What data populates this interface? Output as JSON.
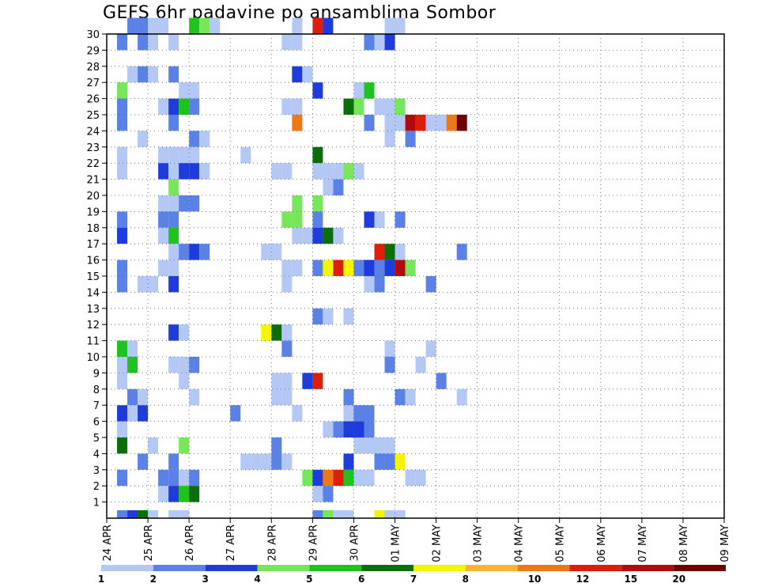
{
  "chart_data": {
    "type": "heatmap",
    "title": "GEFS 6hr padavine po ansamblima Sombor",
    "xlabel": "",
    "ylabel": "",
    "ylim": [
      0,
      30
    ],
    "y_ticks": [
      "1",
      "2",
      "3",
      "4",
      "5",
      "6",
      "7",
      "8",
      "9",
      "10",
      "11",
      "12",
      "13",
      "14",
      "15",
      "16",
      "17",
      "18",
      "19",
      "20",
      "21",
      "22",
      "23",
      "24",
      "25",
      "26",
      "27",
      "28",
      "29",
      "30"
    ],
    "x_ticks": [
      "24 APR",
      "25 APR",
      "26 APR",
      "27 APR",
      "28 APR",
      "29 APR",
      "30 APR",
      "01 MAY",
      "02 MAY",
      "03 MAY",
      "04 MAY",
      "05 MAY",
      "06 MAY",
      "07 MAY",
      "08 MAY",
      "09 MAY"
    ],
    "x_unit": "6h step from 24 APR 00Z",
    "x_steps": 60,
    "grid": true,
    "grid_style": "dotted",
    "colorbar": {
      "labels": [
        "1",
        "2",
        "3",
        "4",
        "5",
        "6",
        "7",
        "8",
        "10",
        "12",
        "15",
        "20"
      ],
      "colors": [
        "#b4c8f5",
        "#5a82e6",
        "#1e3cdc",
        "#78e65a",
        "#1ec31e",
        "#0a6e0a",
        "#f5f500",
        "#fab432",
        "#f07814",
        "#dc1e0a",
        "#b40a0a",
        "#6e0000"
      ]
    },
    "cells": [
      [
        2,
        1,
        30
      ],
      [
        3,
        1,
        30
      ],
      [
        4,
        0,
        30
      ],
      [
        5,
        0,
        30
      ],
      [
        8,
        4,
        30
      ],
      [
        9,
        3,
        30
      ],
      [
        10,
        0,
        30
      ],
      [
        18,
        0,
        30
      ],
      [
        20,
        9,
        30
      ],
      [
        21,
        2,
        30
      ],
      [
        27,
        0,
        30
      ],
      [
        28,
        0,
        30
      ],
      [
        1,
        1,
        29
      ],
      [
        3,
        1,
        29
      ],
      [
        4,
        0,
        29
      ],
      [
        6,
        0,
        29
      ],
      [
        17,
        0,
        29
      ],
      [
        18,
        0,
        29
      ],
      [
        25,
        1,
        29
      ],
      [
        26,
        0,
        29
      ],
      [
        27,
        2,
        29
      ],
      [
        2,
        0,
        27
      ],
      [
        3,
        1,
        27
      ],
      [
        4,
        0,
        27
      ],
      [
        6,
        1,
        27
      ],
      [
        18,
        2,
        27
      ],
      [
        19,
        0,
        27
      ],
      [
        1,
        3,
        26
      ],
      [
        7,
        0,
        26
      ],
      [
        8,
        0,
        26
      ],
      [
        20,
        2,
        26
      ],
      [
        24,
        0,
        26
      ],
      [
        25,
        4,
        26
      ],
      [
        1,
        1,
        25
      ],
      [
        5,
        0,
        25
      ],
      [
        6,
        2,
        25
      ],
      [
        7,
        4,
        25
      ],
      [
        8,
        1,
        25
      ],
      [
        17,
        0,
        25
      ],
      [
        18,
        0,
        25
      ],
      [
        23,
        5,
        25
      ],
      [
        24,
        3,
        25
      ],
      [
        26,
        0,
        25
      ],
      [
        27,
        0,
        25
      ],
      [
        28,
        3,
        25
      ],
      [
        1,
        1,
        24
      ],
      [
        6,
        1,
        24
      ],
      [
        18,
        8,
        24
      ],
      [
        25,
        1,
        24
      ],
      [
        27,
        0,
        24
      ],
      [
        28,
        0,
        24
      ],
      [
        29,
        10,
        24
      ],
      [
        30,
        9,
        24
      ],
      [
        31,
        0,
        24
      ],
      [
        32,
        0,
        24
      ],
      [
        33,
        8,
        24
      ],
      [
        34,
        11,
        24
      ],
      [
        3,
        0,
        23
      ],
      [
        8,
        1,
        23
      ],
      [
        9,
        0,
        23
      ],
      [
        27,
        0,
        23
      ],
      [
        29,
        1,
        23
      ],
      [
        1,
        0,
        22
      ],
      [
        5,
        0,
        22
      ],
      [
        6,
        0,
        22
      ],
      [
        7,
        0,
        22
      ],
      [
        8,
        0,
        22
      ],
      [
        13,
        0,
        22
      ],
      [
        20,
        5,
        22
      ],
      [
        1,
        0,
        21
      ],
      [
        5,
        2,
        21
      ],
      [
        6,
        0,
        21
      ],
      [
        7,
        2,
        21
      ],
      [
        8,
        2,
        21
      ],
      [
        9,
        0,
        21
      ],
      [
        16,
        0,
        21
      ],
      [
        17,
        0,
        21
      ],
      [
        20,
        0,
        21
      ],
      [
        21,
        0,
        21
      ],
      [
        22,
        0,
        21
      ],
      [
        23,
        3,
        21
      ],
      [
        24,
        0,
        21
      ],
      [
        6,
        3,
        20
      ],
      [
        21,
        0,
        20
      ],
      [
        22,
        1,
        20
      ],
      [
        5,
        0,
        19
      ],
      [
        6,
        0,
        19
      ],
      [
        7,
        1,
        19
      ],
      [
        8,
        1,
        19
      ],
      [
        18,
        3,
        19
      ],
      [
        20,
        3,
        19
      ],
      [
        1,
        1,
        18
      ],
      [
        5,
        1,
        18
      ],
      [
        6,
        1,
        18
      ],
      [
        17,
        3,
        18
      ],
      [
        18,
        3,
        18
      ],
      [
        20,
        1,
        18
      ],
      [
        25,
        2,
        18
      ],
      [
        26,
        0,
        18
      ],
      [
        28,
        1,
        18
      ],
      [
        1,
        2,
        17
      ],
      [
        5,
        0,
        17
      ],
      [
        6,
        4,
        17
      ],
      [
        18,
        0,
        17
      ],
      [
        19,
        0,
        17
      ],
      [
        20,
        2,
        17
      ],
      [
        21,
        5,
        17
      ],
      [
        22,
        0,
        17
      ],
      [
        6,
        0,
        16
      ],
      [
        7,
        1,
        16
      ],
      [
        8,
        2,
        16
      ],
      [
        9,
        1,
        16
      ],
      [
        15,
        0,
        16
      ],
      [
        16,
        0,
        16
      ],
      [
        26,
        9,
        16
      ],
      [
        27,
        5,
        16
      ],
      [
        28,
        0,
        16
      ],
      [
        34,
        1,
        16
      ],
      [
        1,
        1,
        15
      ],
      [
        5,
        0,
        15
      ],
      [
        6,
        0,
        15
      ],
      [
        17,
        0,
        15
      ],
      [
        18,
        0,
        15
      ],
      [
        20,
        1,
        15
      ],
      [
        21,
        6,
        15
      ],
      [
        22,
        9,
        15
      ],
      [
        23,
        6,
        15
      ],
      [
        24,
        1,
        15
      ],
      [
        25,
        2,
        15
      ],
      [
        26,
        1,
        15
      ],
      [
        27,
        2,
        15
      ],
      [
        28,
        10,
        15
      ],
      [
        29,
        3,
        15
      ],
      [
        1,
        1,
        14
      ],
      [
        3,
        0,
        14
      ],
      [
        4,
        0,
        14
      ],
      [
        6,
        2,
        14
      ],
      [
        17,
        0,
        14
      ],
      [
        25,
        0,
        14
      ],
      [
        26,
        1,
        14
      ],
      [
        31,
        1,
        14
      ],
      [
        20,
        1,
        12
      ],
      [
        21,
        0,
        12
      ],
      [
        23,
        0,
        12
      ],
      [
        6,
        2,
        11
      ],
      [
        7,
        0,
        11
      ],
      [
        15,
        6,
        11
      ],
      [
        16,
        5,
        11
      ],
      [
        17,
        0,
        11
      ],
      [
        1,
        4,
        10
      ],
      [
        2,
        0,
        10
      ],
      [
        17,
        1,
        10
      ],
      [
        27,
        0,
        10
      ],
      [
        31,
        0,
        10
      ],
      [
        1,
        0,
        9
      ],
      [
        2,
        4,
        9
      ],
      [
        6,
        0,
        9
      ],
      [
        7,
        0,
        9
      ],
      [
        8,
        1,
        9
      ],
      [
        27,
        1,
        9
      ],
      [
        30,
        0,
        9
      ],
      [
        1,
        0,
        8
      ],
      [
        7,
        0,
        8
      ],
      [
        16,
        0,
        8
      ],
      [
        17,
        0,
        8
      ],
      [
        19,
        2,
        8
      ],
      [
        20,
        9,
        8
      ],
      [
        32,
        1,
        8
      ],
      [
        2,
        1,
        7
      ],
      [
        3,
        0,
        7
      ],
      [
        8,
        0,
        7
      ],
      [
        16,
        0,
        7
      ],
      [
        17,
        0,
        7
      ],
      [
        23,
        1,
        7
      ],
      [
        28,
        1,
        7
      ],
      [
        29,
        0,
        7
      ],
      [
        34,
        0,
        7
      ],
      [
        1,
        2,
        6
      ],
      [
        2,
        0,
        6
      ],
      [
        3,
        2,
        6
      ],
      [
        12,
        1,
        6
      ],
      [
        18,
        0,
        6
      ],
      [
        23,
        0,
        6
      ],
      [
        24,
        1,
        6
      ],
      [
        25,
        1,
        6
      ],
      [
        1,
        0,
        5
      ],
      [
        21,
        0,
        5
      ],
      [
        22,
        1,
        5
      ],
      [
        23,
        2,
        5
      ],
      [
        24,
        2,
        5
      ],
      [
        25,
        1,
        5
      ],
      [
        1,
        5,
        4
      ],
      [
        4,
        0,
        4
      ],
      [
        7,
        3,
        4
      ],
      [
        16,
        1,
        4
      ],
      [
        24,
        0,
        4
      ],
      [
        25,
        0,
        4
      ],
      [
        26,
        0,
        4
      ],
      [
        27,
        0,
        4
      ],
      [
        3,
        1,
        3
      ],
      [
        6,
        1,
        3
      ],
      [
        13,
        0,
        3
      ],
      [
        14,
        0,
        3
      ],
      [
        15,
        0,
        3
      ],
      [
        16,
        1,
        3
      ],
      [
        17,
        0,
        3
      ],
      [
        23,
        2,
        3
      ],
      [
        26,
        1,
        3
      ],
      [
        27,
        1,
        3
      ],
      [
        28,
        6,
        3
      ],
      [
        1,
        1,
        2
      ],
      [
        5,
        1,
        2
      ],
      [
        6,
        1,
        2
      ],
      [
        7,
        0,
        2
      ],
      [
        8,
        1,
        2
      ],
      [
        19,
        3,
        2
      ],
      [
        20,
        2,
        2
      ],
      [
        21,
        8,
        2
      ],
      [
        22,
        9,
        2
      ],
      [
        23,
        4,
        2
      ],
      [
        24,
        0,
        2
      ],
      [
        25,
        0,
        2
      ],
      [
        29,
        0,
        2
      ],
      [
        30,
        0,
        2
      ],
      [
        5,
        0,
        1
      ],
      [
        6,
        2,
        1
      ],
      [
        7,
        4,
        1
      ],
      [
        8,
        5,
        1
      ],
      [
        20,
        0,
        1
      ],
      [
        21,
        1,
        1
      ],
      [
        1,
        1,
        0
      ],
      [
        2,
        2,
        0
      ],
      [
        3,
        5,
        0
      ],
      [
        4,
        0,
        0
      ],
      [
        6,
        0,
        0
      ],
      [
        7,
        0,
        0
      ],
      [
        20,
        1,
        0
      ],
      [
        21,
        3,
        0
      ],
      [
        22,
        0,
        0
      ],
      [
        23,
        0,
        0
      ],
      [
        26,
        6,
        0
      ],
      [
        27,
        0,
        0
      ],
      [
        28,
        0,
        0
      ]
    ]
  }
}
